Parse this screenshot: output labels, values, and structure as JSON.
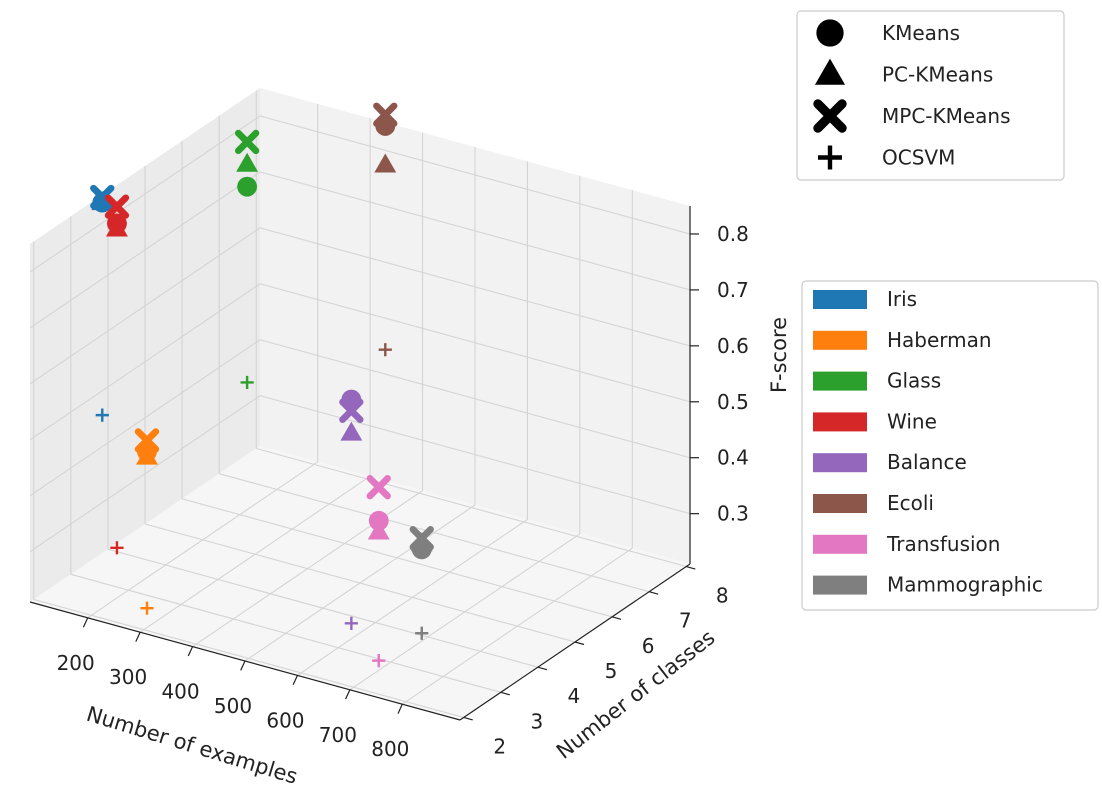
{
  "chart_data": {
    "type": "scatter",
    "projection": "3d",
    "xlabel": "Number of examples",
    "ylabel": "Number of classes",
    "zlabel": "F-score",
    "xlim": [
      90,
      910
    ],
    "ylim": [
      1.9,
      8.1
    ],
    "zlim": [
      0.21,
      0.85
    ],
    "xticks": [
      200,
      300,
      400,
      500,
      600,
      700,
      800
    ],
    "yticks": [
      2,
      3,
      4,
      5,
      6,
      7,
      8
    ],
    "zticks": [
      0.3,
      0.4,
      0.5,
      0.6,
      0.7,
      0.8
    ],
    "xtick_labels": [
      "200",
      "300",
      "400",
      "500",
      "600",
      "700",
      "800"
    ],
    "ytick_labels": [
      "2",
      "3",
      "4",
      "5",
      "6",
      "7",
      "8"
    ],
    "ztick_labels": [
      "0.3",
      "0.4",
      "0.5",
      "0.6",
      "0.7",
      "0.8"
    ],
    "grid": true,
    "method_legend": {
      "placement": "top-right",
      "entries": [
        {
          "label": "KMeans",
          "marker": "circle"
        },
        {
          "label": "PC-KMeans",
          "marker": "triangle"
        },
        {
          "label": "MPC-KMeans",
          "marker": "x"
        },
        {
          "label": "OCSVM",
          "marker": "plus"
        }
      ]
    },
    "dataset_legend": {
      "placement": "right",
      "entries": [
        {
          "label": "Iris",
          "color": "#1f77b4"
        },
        {
          "label": "Haberman",
          "color": "#ff7f0e"
        },
        {
          "label": "Glass",
          "color": "#2ca02c"
        },
        {
          "label": "Wine",
          "color": "#d62728"
        },
        {
          "label": "Balance",
          "color": "#9467bd"
        },
        {
          "label": "Ecoli",
          "color": "#8c564b"
        },
        {
          "label": "Transfusion",
          "color": "#e377c2"
        },
        {
          "label": "Mammographic",
          "color": "#7f7f7f"
        }
      ]
    },
    "datasets": [
      {
        "name": "Iris",
        "color": "#1f77b4",
        "examples": 150,
        "classes": 3,
        "scores": {
          "KMeans": 0.89,
          "PC-KMeans": 0.89,
          "MPC-KMeans": 0.9,
          "OCSVM": 0.51
        }
      },
      {
        "name": "Haberman",
        "color": "#ff7f0e",
        "examples": 306,
        "classes": 2,
        "scores": {
          "KMeans": 0.53,
          "PC-KMeans": 0.52,
          "MPC-KMeans": 0.55,
          "OCSVM": 0.25
        }
      },
      {
        "name": "Glass",
        "color": "#2ca02c",
        "examples": 214,
        "classes": 6,
        "scores": {
          "KMeans": 0.8,
          "PC-KMeans": 0.84,
          "MPC-KMeans": 0.88,
          "OCSVM": 0.45
        }
      },
      {
        "name": "Wine",
        "color": "#d62728",
        "examples": 178,
        "classes": 3,
        "scores": {
          "KMeans": 0.86,
          "PC-KMeans": 0.85,
          "MPC-KMeans": 0.89,
          "OCSVM": 0.28
        }
      },
      {
        "name": "Balance",
        "color": "#9467bd",
        "examples": 625,
        "classes": 3,
        "scores": {
          "KMeans": 0.66,
          "PC-KMeans": 0.6,
          "MPC-KMeans": 0.64,
          "OCSVM": 0.26
        }
      },
      {
        "name": "Ecoli",
        "color": "#8c564b",
        "examples": 336,
        "classes": 8,
        "scores": {
          "KMeans": 0.85,
          "PC-KMeans": 0.78,
          "MPC-KMeans": 0.87,
          "OCSVM": 0.45
        }
      },
      {
        "name": "Transfusion",
        "color": "#e377c2",
        "examples": 748,
        "classes": 2,
        "scores": {
          "KMeans": 0.52,
          "PC-KMeans": 0.5,
          "MPC-KMeans": 0.58,
          "OCSVM": 0.27
        }
      },
      {
        "name": "Mammographic",
        "color": "#7f7f7f",
        "examples": 830,
        "classes": 2,
        "scores": {
          "KMeans": 0.49,
          "PC-KMeans": 0.5,
          "MPC-KMeans": 0.51,
          "OCSVM": 0.34
        }
      }
    ]
  }
}
